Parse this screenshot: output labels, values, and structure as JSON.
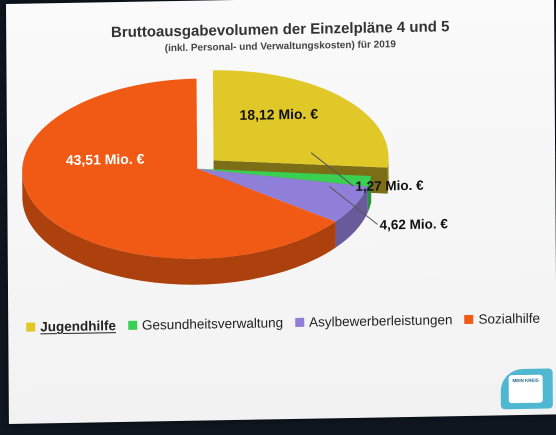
{
  "chart_data": {
    "type": "pie",
    "title": "Bruttoausgabevolumen der Einzelpläne 4 und 5",
    "subtitle": "(inkl. Personal- und Verwaltungskosten) für 2019",
    "series": [
      {
        "name": "Jugendhilfe",
        "value": 18.12,
        "label": "18,12 Mio. €",
        "color": "#e0c829",
        "exploded": true
      },
      {
        "name": "Gesundheitsverwaltung",
        "value": 1.27,
        "label": "1,27 Mio. €",
        "color": "#39cf52",
        "exploded": false
      },
      {
        "name": "Asylbewerberleistungen",
        "value": 4.62,
        "label": "4,62 Mio. €",
        "color": "#8f7fd8",
        "exploded": false
      },
      {
        "name": "Sozialhilfe",
        "value": 43.51,
        "label": "43,51 Mio. €",
        "color": "#f05a14",
        "exploded": false
      }
    ],
    "legend_position": "bottom",
    "style": "3d"
  },
  "legend": {
    "items": [
      {
        "label": "Jugendhilfe",
        "color": "#e0c829",
        "active": true
      },
      {
        "label": "Gesundheitsverwaltung",
        "color": "#39cf52",
        "active": false
      },
      {
        "label": "Asylbewerberleistungen",
        "color": "#8f7fd8",
        "active": false
      },
      {
        "label": "Sozialhilfe",
        "color": "#f05a14",
        "active": false
      }
    ]
  },
  "logo": {
    "text": "MEIN KREIS",
    "color": "#4fb7cf"
  }
}
